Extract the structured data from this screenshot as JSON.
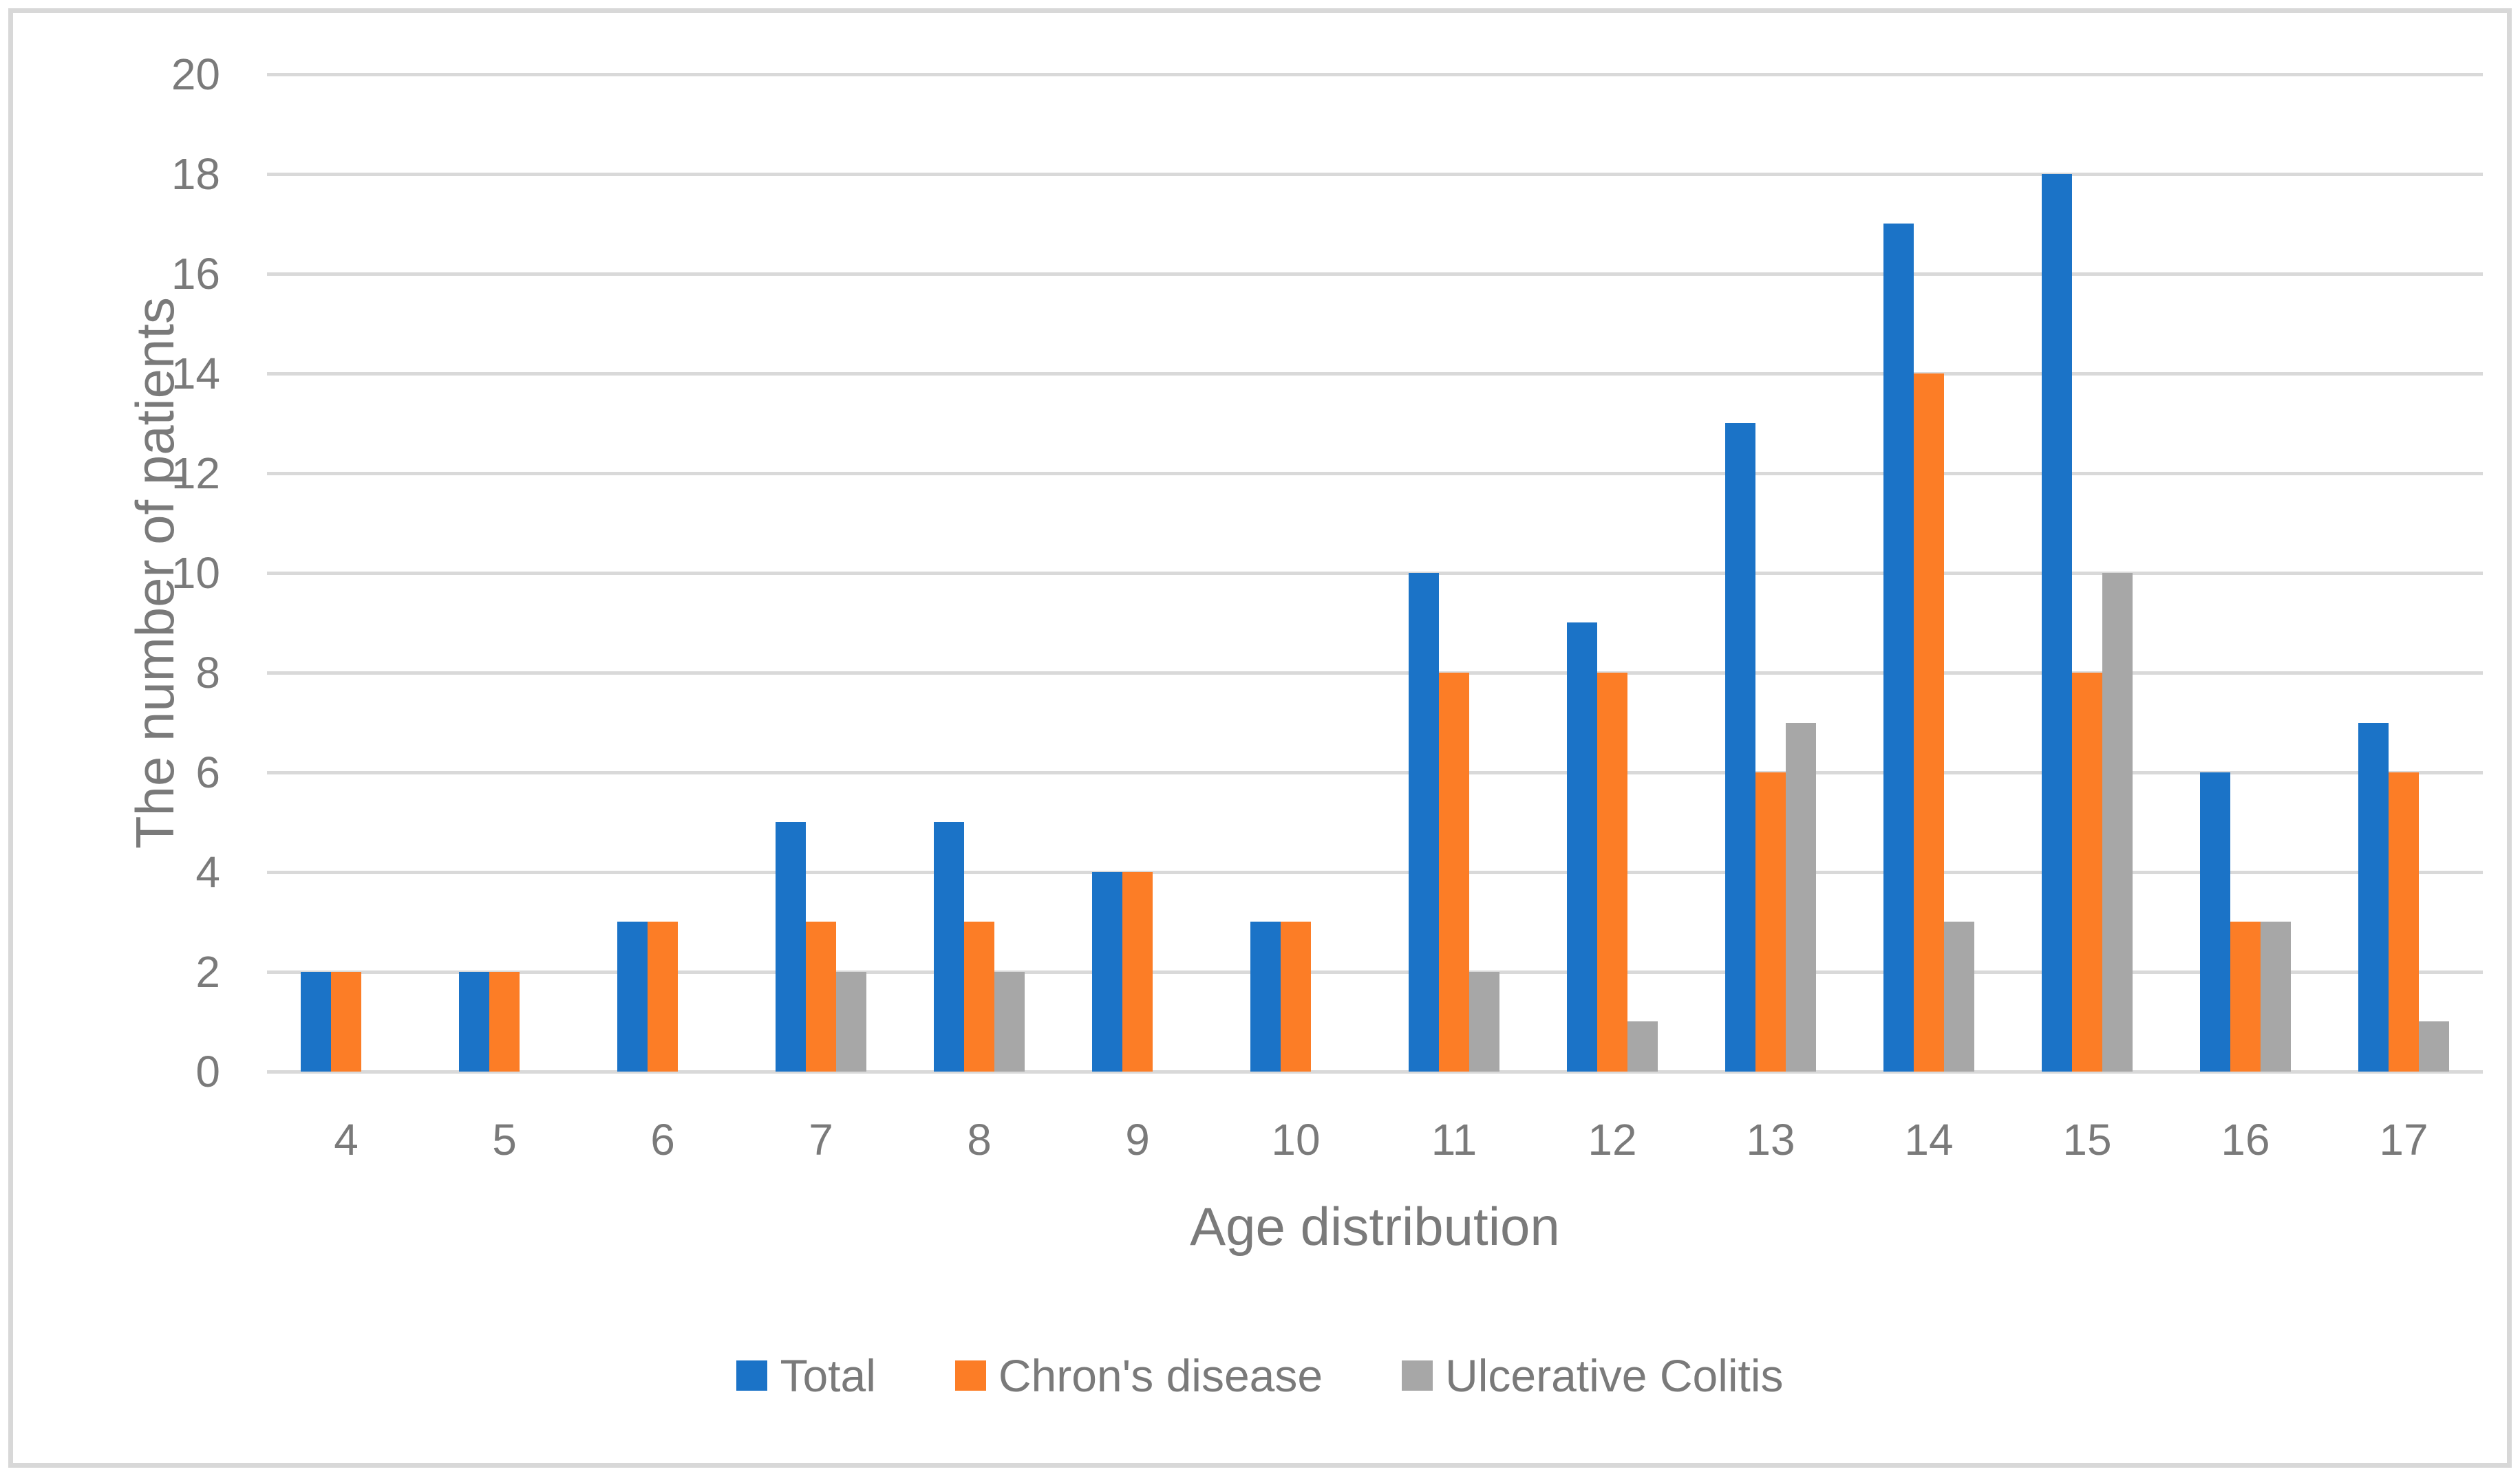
{
  "chart_data": {
    "type": "bar",
    "title": "",
    "xlabel": "Age distribution",
    "ylabel": "The number of patients",
    "categories": [
      "4",
      "5",
      "6",
      "7",
      "8",
      "9",
      "10",
      "11",
      "12",
      "13",
      "14",
      "15",
      "16",
      "17"
    ],
    "series": [
      {
        "name": "Total",
        "color": "#1B73C7",
        "values": [
          2,
          2,
          3,
          5,
          5,
          4,
          3,
          10,
          9,
          13,
          17,
          18,
          6,
          7
        ]
      },
      {
        "name": "Chron's disease",
        "color": "#FC7D26",
        "values": [
          2,
          2,
          3,
          3,
          3,
          4,
          3,
          8,
          8,
          6,
          14,
          8,
          3,
          6
        ]
      },
      {
        "name": "Ulcerative Colitis",
        "color": "#A7A7A7",
        "values": [
          0,
          0,
          0,
          2,
          2,
          0,
          0,
          2,
          1,
          7,
          3,
          10,
          3,
          1
        ]
      }
    ],
    "ylim": [
      0,
      20
    ],
    "y_ticks": [
      0,
      2,
      4,
      6,
      8,
      10,
      12,
      14,
      16,
      18,
      20
    ],
    "grid": true,
    "legend_position": "bottom",
    "colors": {
      "gridline": "#D9D9D9",
      "axis_text": "#7A7A7A",
      "frame": "#D8D8D8",
      "background": "#FFFFFF"
    }
  }
}
